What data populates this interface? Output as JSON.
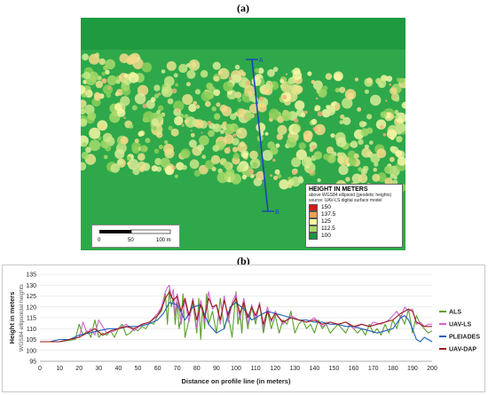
{
  "panel_labels": {
    "a": "(a)",
    "b": "(b)"
  },
  "map": {
    "legend": {
      "title": "HEIGHT IN METERS",
      "subtitle1": "above WGS84 ellipsoid (geodetic heights)",
      "subtitle2": "source: UAV-LS digital surface model",
      "classes": [
        {
          "label": "150",
          "color": "#d7191c"
        },
        {
          "label": "137.5",
          "color": "#f5a05a"
        },
        {
          "label": "125",
          "color": "#f7f7a5"
        },
        {
          "label": "112.5",
          "color": "#a6d96a"
        },
        {
          "label": "100",
          "color": "#1a9641"
        }
      ]
    },
    "scalebar": {
      "labels": [
        "0",
        "50",
        "100 m"
      ]
    },
    "profile_points": {
      "start": "A",
      "end": "B"
    },
    "profile_color": "#2040c0"
  },
  "chart_data": {
    "type": "line",
    "xlabel": "Distance on profile line (in meters)",
    "ylabel": "Height in meters",
    "ylabel2": "WGS84 ellipsoidal heights",
    "xlim": [
      0,
      200
    ],
    "ylim": [
      95,
      135
    ],
    "xticks": [
      0,
      10,
      20,
      30,
      40,
      50,
      60,
      70,
      80,
      90,
      100,
      110,
      120,
      130,
      140,
      150,
      160,
      170,
      180,
      190,
      200
    ],
    "yticks": [
      95,
      100,
      105,
      110,
      115,
      120,
      125,
      130,
      135
    ],
    "grid": true,
    "legend_position": "right",
    "series": [
      {
        "name": "ALS",
        "color": "#5aa02c",
        "x": [
          0,
          10,
          18,
          20,
          22,
          24,
          26,
          28,
          30,
          32,
          34,
          36,
          38,
          40,
          42,
          44,
          46,
          48,
          50,
          52,
          54,
          56,
          58,
          60,
          62,
          64,
          65,
          66,
          67,
          68,
          69,
          70,
          71,
          72,
          73,
          74,
          76,
          78,
          80,
          81,
          82,
          83,
          84,
          85,
          86,
          88,
          90,
          92,
          94,
          96,
          98,
          100,
          101,
          102,
          103,
          104,
          106,
          108,
          110,
          112,
          114,
          116,
          118,
          120,
          122,
          124,
          126,
          128,
          130,
          132,
          134,
          136,
          138,
          140,
          142,
          144,
          146,
          148,
          150,
          152,
          154,
          156,
          158,
          160,
          162,
          164,
          166,
          168,
          170,
          172,
          174,
          176,
          178,
          180,
          182,
          184,
          186,
          188,
          190,
          192,
          194,
          196,
          198,
          200
        ],
        "y": [
          104,
          104,
          105,
          112,
          107,
          109,
          106,
          114,
          106,
          108,
          107,
          109,
          106,
          110,
          112,
          107,
          108,
          110,
          109,
          111,
          110,
          113,
          112,
          116,
          118,
          126,
          112,
          128,
          120,
          124,
          112,
          122,
          110,
          115,
          126,
          106,
          114,
          122,
          108,
          124,
          105,
          120,
          110,
          126,
          112,
          118,
          108,
          124,
          110,
          116,
          106,
          127,
          112,
          118,
          108,
          122,
          110,
          120,
          112,
          122,
          108,
          118,
          110,
          116,
          108,
          114,
          112,
          118,
          108,
          112,
          114,
          110,
          112,
          108,
          114,
          110,
          112,
          108,
          110,
          112,
          110,
          108,
          112,
          110,
          108,
          110,
          107,
          112,
          108,
          110,
          107,
          112,
          108,
          114,
          110,
          116,
          112,
          119,
          108,
          116,
          112,
          110,
          108,
          109
        ]
      },
      {
        "name": "UAV-LS",
        "color": "#cc66cc",
        "x": [
          0,
          10,
          20,
          22,
          24,
          26,
          28,
          30,
          34,
          38,
          40,
          44,
          48,
          52,
          56,
          60,
          62,
          64,
          65,
          66,
          67,
          68,
          69,
          70,
          72,
          74,
          76,
          78,
          80,
          82,
          84,
          86,
          88,
          90,
          92,
          94,
          96,
          98,
          100,
          102,
          104,
          106,
          108,
          110,
          112,
          114,
          116,
          118,
          120,
          124,
          128,
          132,
          136,
          140,
          144,
          148,
          152,
          156,
          160,
          164,
          168,
          170,
          174,
          178,
          180,
          182,
          184,
          186,
          188,
          190,
          192,
          194,
          196,
          198,
          200
        ],
        "y": [
          104,
          104,
          106,
          113,
          108,
          110,
          107,
          114,
          108,
          109,
          110,
          112,
          109,
          112,
          113,
          117,
          120,
          127,
          129,
          130,
          124,
          128,
          116,
          126,
          112,
          123,
          113,
          124,
          110,
          123,
          113,
          127,
          119,
          121,
          112,
          125,
          113,
          122,
          126,
          114,
          124,
          112,
          121,
          114,
          122,
          110,
          120,
          113,
          118,
          112,
          116,
          114,
          113,
          115,
          111,
          113,
          112,
          113,
          110,
          112,
          111,
          113,
          112,
          114,
          116,
          118,
          115,
          120,
          118,
          119,
          112,
          113,
          111,
          112,
          112
        ]
      },
      {
        "name": "PLEIADES",
        "color": "#2060c0",
        "x": [
          0,
          5,
          10,
          15,
          20,
          25,
          30,
          35,
          40,
          45,
          50,
          55,
          60,
          63,
          66,
          70,
          74,
          78,
          82,
          86,
          90,
          94,
          97,
          100,
          104,
          108,
          112,
          116,
          120,
          124,
          128,
          132,
          136,
          140,
          144,
          148,
          152,
          156,
          160,
          164,
          168,
          172,
          176,
          180,
          184,
          186,
          188,
          190,
          192,
          194,
          196,
          198,
          200
        ],
        "y": [
          104,
          104,
          105,
          105,
          107,
          108,
          109,
          110,
          110,
          111,
          111,
          112,
          114,
          117,
          122,
          121,
          114,
          120,
          121,
          112,
          108,
          110,
          120,
          122,
          119,
          114,
          116,
          118,
          117,
          116,
          115,
          114,
          114,
          113,
          113,
          112,
          112,
          111,
          111,
          110,
          109,
          108,
          109,
          110,
          115,
          116,
          114,
          110,
          105,
          104,
          106,
          105,
          104
        ]
      },
      {
        "name": "UAV-DAP",
        "color": "#9a1a1a",
        "x": [
          0,
          10,
          20,
          24,
          28,
          32,
          36,
          40,
          44,
          48,
          52,
          56,
          60,
          62,
          64,
          66,
          68,
          70,
          72,
          74,
          76,
          78,
          80,
          82,
          84,
          86,
          88,
          90,
          92,
          94,
          96,
          98,
          100,
          102,
          104,
          106,
          108,
          110,
          112,
          114,
          116,
          118,
          120,
          124,
          128,
          132,
          136,
          140,
          144,
          148,
          152,
          156,
          160,
          164,
          168,
          172,
          176,
          180,
          184,
          188,
          190,
          192,
          194,
          196,
          198,
          200
        ],
        "y": [
          104,
          104,
          106,
          108,
          110,
          107,
          109,
          110,
          111,
          110,
          112,
          113,
          116,
          119,
          124,
          127,
          123,
          125,
          118,
          124,
          116,
          123,
          114,
          121,
          115,
          124,
          120,
          121,
          114,
          123,
          116,
          121,
          124,
          117,
          122,
          115,
          120,
          116,
          121,
          112,
          118,
          114,
          117,
          113,
          115,
          114,
          113,
          114,
          112,
          113,
          112,
          113,
          111,
          112,
          111,
          112,
          113,
          114,
          117,
          119,
          118,
          113,
          112,
          111,
          111,
          111
        ]
      }
    ]
  }
}
